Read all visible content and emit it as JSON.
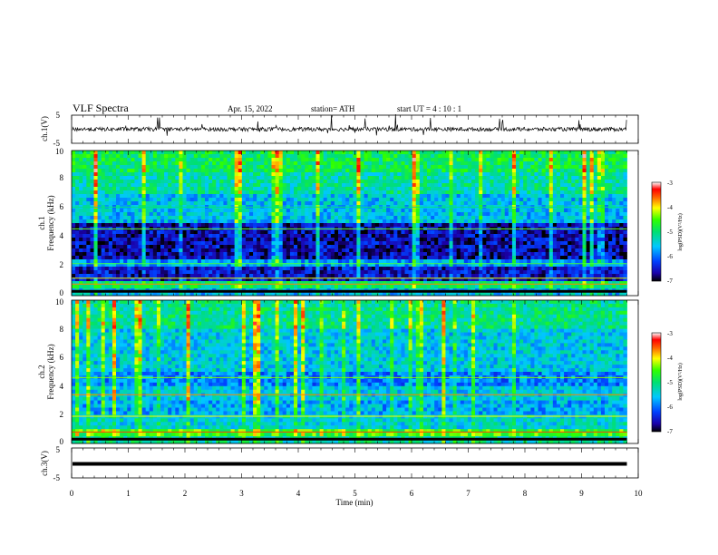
{
  "header": {
    "title": "VLF  Spectra",
    "date": "Apr. 15, 2022",
    "station": "station= ATH",
    "start": "start  UT  =   4  : 10 : 1"
  },
  "chart_data": [
    {
      "type": "line",
      "name": "ch1-waveform",
      "ylabel": "ch.1(V)",
      "yticks": [
        "5",
        "-5"
      ],
      "ylim": [
        -5,
        5
      ],
      "xlim": [
        0,
        10
      ],
      "x_data_end": 9.8,
      "baseline": 0,
      "line_color": "#000000"
    },
    {
      "type": "heatmap",
      "name": "ch1-spectrogram",
      "ylabel": "ch.1\nFrequency  (kHz)",
      "yticks": [
        "0",
        "2",
        "4",
        "6",
        "8",
        "10"
      ],
      "ylim": [
        0,
        10
      ],
      "xlim": [
        0,
        10
      ],
      "x_data_end": 9.8,
      "colorbar": {
        "label": "log(PSD)(V²/Hz)",
        "ticks": [
          "-3",
          "-4",
          "-5",
          "-6",
          "-7"
        ],
        "range": [
          -7,
          -3
        ]
      },
      "bands": [
        {
          "from": 0.0,
          "to": 0.5,
          "level": -5.6
        },
        {
          "from": 0.5,
          "to": 1.1,
          "level": -5.0
        },
        {
          "from": 1.1,
          "to": 2.0,
          "level": -6.5
        },
        {
          "from": 2.0,
          "to": 2.4,
          "level": -5.8
        },
        {
          "from": 2.4,
          "to": 5.0,
          "level": -6.6
        },
        {
          "from": 5.0,
          "to": 7.0,
          "level": -5.6
        },
        {
          "from": 7.0,
          "to": 8.5,
          "level": -5.2
        },
        {
          "from": 8.5,
          "to": 10.0,
          "level": -4.9
        }
      ]
    },
    {
      "type": "heatmap",
      "name": "ch2-spectrogram",
      "ylabel": "ch.2\nFrequency  (kHz)",
      "yticks": [
        "0",
        "2",
        "4",
        "6",
        "8",
        "10"
      ],
      "ylim": [
        0,
        10
      ],
      "xlim": [
        0,
        10
      ],
      "x_data_end": 9.8,
      "colorbar": {
        "label": "log(PSD)(V²/Hz)",
        "ticks": [
          "-3",
          "-4",
          "-5",
          "-6",
          "-7"
        ],
        "range": [
          -7,
          -3
        ]
      },
      "bands": [
        {
          "from": 0.0,
          "to": 0.6,
          "level": -5.2
        },
        {
          "from": 0.6,
          "to": 1.0,
          "level": -4.6
        },
        {
          "from": 1.0,
          "to": 2.0,
          "level": -5.4
        },
        {
          "from": 2.0,
          "to": 3.0,
          "level": -5.7
        },
        {
          "from": 3.0,
          "to": 4.0,
          "level": -5.5
        },
        {
          "from": 4.0,
          "to": 5.0,
          "level": -5.9
        },
        {
          "from": 5.0,
          "to": 8.0,
          "level": -5.5
        },
        {
          "from": 8.0,
          "to": 10.0,
          "level": -5.1
        }
      ]
    },
    {
      "type": "line",
      "name": "ch3-waveform",
      "ylabel": "ch.3(V)",
      "yticks": [
        "5",
        "-5"
      ],
      "ylim": [
        -5,
        5
      ],
      "xlim": [
        0,
        10
      ],
      "x_data_end": 9.8,
      "baseline": 0,
      "line_color": "#000000"
    }
  ],
  "xaxis": {
    "label": "Time  (min)",
    "ticks": [
      "0",
      "1",
      "2",
      "3",
      "4",
      "5",
      "6",
      "7",
      "8",
      "9",
      "10"
    ],
    "range": [
      0,
      10
    ]
  }
}
